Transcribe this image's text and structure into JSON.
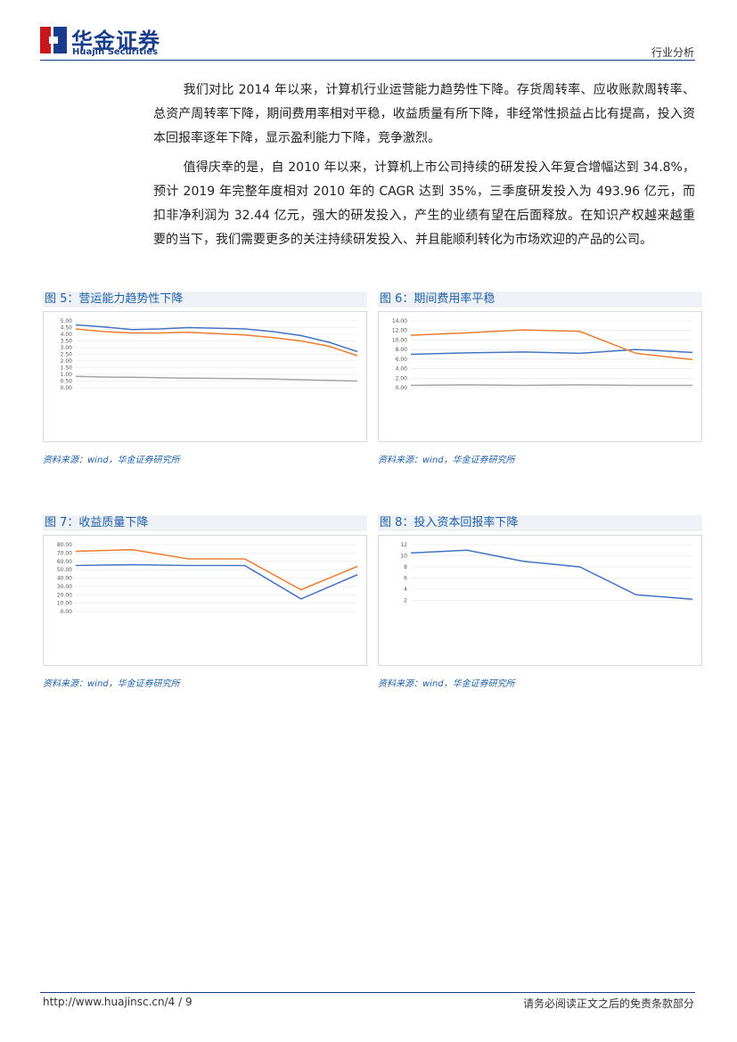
{
  "header": {
    "brand": "华金证券",
    "brand_en": "Huajin Securities",
    "section": "行业分析"
  },
  "paragraphs": [
    "我们对比 2014 年以来，计算机行业运营能力趋势性下降。存货周转率、应收账款周转率、总资产周转率下降，期间费用率相对平稳，收益质量有所下降，非经常性损益占比有提高，投入资本回报率逐年下降，显示盈利能力下降，竞争激烈。",
    "值得庆幸的是，自 2010 年以来，计算机上市公司持续的研发投入年复合增幅达到 34.8%，预计 2019 年完整年度相对 2010 年的 CAGR 达到 35%，三季度研发投入为 493.96 亿元，而扣非净利润为 32.44 亿元，强大的研发投入，产生的业绩有望在后面释放。在知识产权越来越重要的当下，我们需要更多的关注持续研发投入、并且能顺利转化为市场欢迎的产品的公司。"
  ],
  "figures": [
    {
      "title": "图 5：营运能力趋势性下降",
      "source": "资料来源：wind，华金证券研究所",
      "chart": {
        "type": "line",
        "ylim": [
          0,
          5
        ],
        "yticks": [
          {
            "value": 0,
            "label": "0.00"
          },
          {
            "value": 0.5,
            "label": "0.50"
          },
          {
            "value": 1,
            "label": "1.00"
          },
          {
            "value": 1.5,
            "label": "1.50"
          },
          {
            "value": 2,
            "label": "2.00"
          },
          {
            "value": 2.5,
            "label": "2.50"
          },
          {
            "value": 3,
            "label": "3.00"
          },
          {
            "value": 3.5,
            "label": "3.50"
          },
          {
            "value": 4,
            "label": "4.00"
          },
          {
            "value": 4.5,
            "label": "4.50"
          },
          {
            "value": 5,
            "label": "5.00"
          }
        ],
        "series": [
          {
            "color": "#4472c4",
            "values": [
              4.7,
              4.55,
              4.35,
              4.4,
              4.5,
              4.45,
              4.4,
              4.2,
              3.9,
              3.4,
              2.7
            ]
          },
          {
            "color": "#ed7d31",
            "values": [
              4.4,
              4.2,
              4.1,
              4.1,
              4.15,
              4.05,
              3.95,
              3.75,
              3.5,
              3.1,
              2.4
            ]
          },
          {
            "color": "#a5a5a5",
            "values": [
              0.85,
              0.8,
              0.78,
              0.75,
              0.72,
              0.7,
              0.68,
              0.65,
              0.6,
              0.55,
              0.5
            ]
          }
        ]
      }
    },
    {
      "title": "图 6：期间费用率平稳",
      "source": "资料来源：wind，华金证券研究所",
      "chart": {
        "type": "line",
        "ylim": [
          0,
          14
        ],
        "yticks": [
          {
            "value": 0,
            "label": "0.00"
          },
          {
            "value": 2,
            "label": "2.00"
          },
          {
            "value": 4,
            "label": "4.00"
          },
          {
            "value": 6,
            "label": "6.00"
          },
          {
            "value": 8,
            "label": "8.00"
          },
          {
            "value": 10,
            "label": "10.00"
          },
          {
            "value": 12,
            "label": "12.00"
          },
          {
            "value": 14,
            "label": "14.00"
          }
        ],
        "series": [
          {
            "color": "#4472c4",
            "values": [
              7.0,
              7.3,
              7.5,
              7.2,
              8.0,
              7.4
            ]
          },
          {
            "color": "#ed7d31",
            "values": [
              11.0,
              11.5,
              12.1,
              11.8,
              7.2,
              5.9
            ]
          },
          {
            "color": "#a5a5a5",
            "values": [
              0.5,
              0.6,
              0.5,
              0.6,
              0.5,
              0.5
            ]
          }
        ]
      }
    },
    {
      "title": "图 7：收益质量下降",
      "source": "资料来源：wind，华金证券研究所",
      "chart": {
        "type": "line",
        "ylim": [
          0,
          80
        ],
        "yticks": [
          {
            "value": 0,
            "label": "0.00"
          },
          {
            "value": 10,
            "label": "10.00"
          },
          {
            "value": 20,
            "label": "20.00"
          },
          {
            "value": 30,
            "label": "30.00"
          },
          {
            "value": 40,
            "label": "40.00"
          },
          {
            "value": 50,
            "label": "50.00"
          },
          {
            "value": 60,
            "label": "60.00"
          },
          {
            "value": 70,
            "label": "70.00"
          },
          {
            "value": 80,
            "label": "80.00"
          }
        ],
        "series": [
          {
            "color": "#4472c4",
            "values": [
              55,
              56,
              55,
              55,
              15,
              44
            ]
          },
          {
            "color": "#ed7d31",
            "values": [
              72,
              74,
              63,
              63,
              26,
              54
            ]
          }
        ]
      }
    },
    {
      "title": "图 8：投入资本回报率下降",
      "source": "资料来源：wind，华金证券研究所",
      "chart": {
        "type": "line",
        "ylim": [
          0,
          12
        ],
        "yticks": [
          2,
          4,
          6,
          8,
          10,
          12
        ],
        "series": [
          {
            "color": "#4472c4",
            "values": [
              10.5,
              11.0,
              9.0,
              8.0,
              3.0,
              2.2
            ]
          }
        ]
      }
    }
  ],
  "footer": {
    "url": "http://www.huajinsc.cn/4 / 9",
    "disclaimer": "请务必阅读正文之后的免责条款部分"
  }
}
